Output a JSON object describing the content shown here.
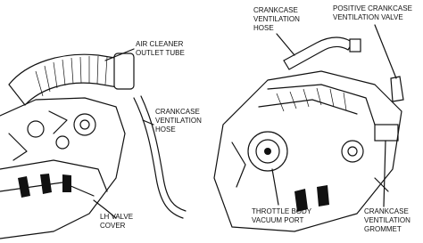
{
  "labels": [
    {
      "lines": [
        "AIR CLEANER",
        "OUTLET TUBE"
      ]
    },
    {
      "lines": [
        "CRANKCASE",
        "VENTILATION",
        "HOSE"
      ]
    },
    {
      "lines": [
        "LH VALVE",
        "COVER"
      ]
    },
    {
      "lines": [
        "CRANKCASE",
        "VENTILATION",
        "HOSE"
      ]
    },
    {
      "lines": [
        "POSITIVE CRANKCASE",
        "VENTILATION VALVE"
      ]
    },
    {
      "lines": [
        "THROTTLE BODY",
        "VACUUM PORT"
      ]
    },
    {
      "lines": [
        "CRANKCASE",
        "VENTILATION",
        "GROMMET"
      ]
    }
  ]
}
